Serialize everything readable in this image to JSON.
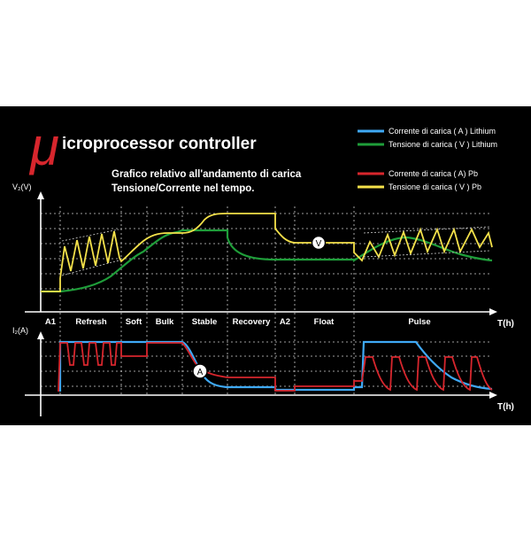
{
  "header": {
    "mu_symbol": "μ",
    "title": "icroprocessor controller",
    "subtitle_line1": "Grafico relativo all'andamento di carica",
    "subtitle_line2": "Tensione/Corrente nel tempo."
  },
  "legend": [
    {
      "label": "Corrente di carica ( A ) Lithium",
      "color": "#3fa9f5"
    },
    {
      "label": "Tensione di carica ( V ) Lithium",
      "color": "#1f9e3a"
    },
    {
      "label": "Corrente di carica ( A) Pb",
      "color": "#d7262d"
    },
    {
      "label": "Tensione di carica ( V ) Pb",
      "color": "#f4e14a"
    }
  ],
  "axes": {
    "voltage_label": "V₂(V)",
    "current_label": "I₂(A)",
    "time_label_top": "T(h)",
    "time_label_bottom": "T(h)"
  },
  "phases": [
    "A1",
    "Refresh",
    "Soft",
    "Bulk",
    "Stable",
    "Recovery",
    "A2",
    "Float",
    "Pulse"
  ],
  "markers": {
    "voltage": "V",
    "current": "A"
  },
  "colors": {
    "background": "#000000",
    "lithium_current": "#3fa9f5",
    "lithium_voltage": "#1f9e3a",
    "pb_current": "#d7262d",
    "pb_voltage": "#f4e14a",
    "mu": "#d7262d"
  }
}
